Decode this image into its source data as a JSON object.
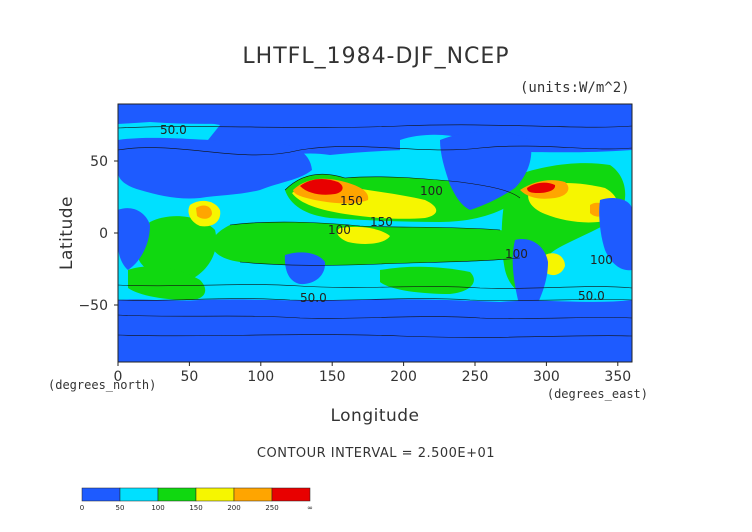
{
  "title": "LHTFL_1984-DJF_NCEP",
  "units_label": "(units:W/m^2)",
  "x_axis": {
    "title": "Longitude",
    "unit_label": "(degrees_east)",
    "ticks": [
      "0",
      "50",
      "100",
      "150",
      "200",
      "250",
      "300",
      "350"
    ],
    "range": [
      0,
      360
    ]
  },
  "y_axis": {
    "title": "Latitude",
    "unit_label": "(degrees_north)",
    "ticks": [
      "50",
      "0",
      "−50"
    ],
    "range": [
      -90,
      90
    ]
  },
  "contour_interval_text": "CONTOUR INTERVAL = 2.500E+01",
  "contour_labels": [
    "100",
    "150",
    "150",
    "100",
    "100",
    "100",
    "50.0",
    "50.0",
    "50.0"
  ],
  "colorbar": {
    "colors": [
      "#1e5bff",
      "#00e0ff",
      "#10d810",
      "#f6f600",
      "#ffa500",
      "#e80000"
    ],
    "labels": [
      "0",
      "50",
      "100",
      "150",
      "200",
      "250",
      "∞"
    ]
  },
  "palette": {
    "band_0_50": "#1e5bff",
    "band_50_100": "#00e0ff",
    "band_100_150": "#10d810",
    "band_150_200": "#f6f600",
    "band_200_250": "#ffa500",
    "band_250_up": "#e80000"
  }
}
